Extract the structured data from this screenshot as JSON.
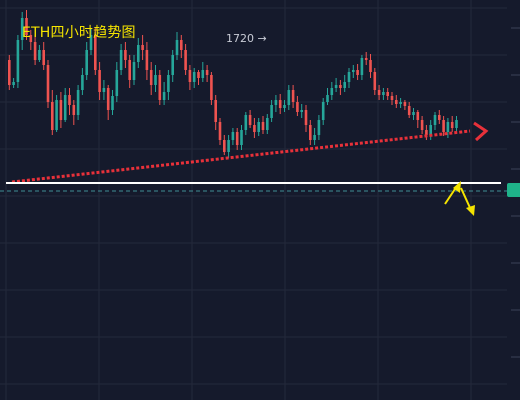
{
  "title": "ETH四小时趋势图",
  "peak_label": "1720 →",
  "colors": {
    "background": "#151a2c",
    "grid": "#23293b",
    "candle_up": "#26a69a",
    "candle_down": "#ef5350",
    "trendline": "#e8313a",
    "support_line": "#ffffff",
    "arrows": "#f5e400",
    "price_tag": "#1fb38a"
  },
  "chart_data": {
    "type": "candlestick",
    "annotations": [
      {
        "kind": "text",
        "text": "1720 →"
      },
      {
        "kind": "trendline",
        "style": "dotted",
        "direction": "rising",
        "color": "#e8313a"
      },
      {
        "kind": "horizontal-support",
        "color": "#ffffff"
      },
      {
        "kind": "arrow",
        "direction": "up",
        "color": "#f5e400"
      },
      {
        "kind": "arrow",
        "direction": "down",
        "color": "#f5e400"
      }
    ],
    "candles": [
      [
        140,
        115,
        145,
        110
      ],
      [
        115,
        118,
        122,
        112
      ],
      [
        118,
        160,
        165,
        112
      ],
      [
        160,
        182,
        188,
        150
      ],
      [
        182,
        165,
        190,
        160
      ],
      [
        165,
        158,
        170,
        150
      ],
      [
        158,
        140,
        165,
        135
      ],
      [
        140,
        150,
        155,
        138
      ],
      [
        150,
        135,
        158,
        130
      ],
      [
        135,
        98,
        140,
        92
      ],
      [
        98,
        70,
        110,
        65
      ],
      [
        70,
        100,
        105,
        68
      ],
      [
        100,
        80,
        108,
        72
      ],
      [
        80,
        105,
        112,
        78
      ],
      [
        105,
        95,
        112,
        85
      ],
      [
        95,
        85,
        100,
        75
      ],
      [
        85,
        110,
        115,
        80
      ],
      [
        110,
        125,
        132,
        105
      ],
      [
        125,
        150,
        158,
        120
      ],
      [
        150,
        165,
        172,
        145
      ],
      [
        165,
        130,
        172,
        125
      ],
      [
        130,
        108,
        138,
        100
      ],
      [
        108,
        112,
        120,
        100
      ],
      [
        112,
        90,
        115,
        80
      ],
      [
        90,
        104,
        110,
        85
      ],
      [
        104,
        130,
        138,
        98
      ],
      [
        130,
        150,
        156,
        125
      ],
      [
        150,
        140,
        158,
        132
      ],
      [
        140,
        120,
        145,
        112
      ],
      [
        120,
        138,
        145,
        115
      ],
      [
        138,
        155,
        162,
        132
      ],
      [
        155,
        150,
        165,
        140
      ],
      [
        150,
        130,
        158,
        120
      ],
      [
        130,
        115,
        138,
        105
      ],
      [
        115,
        125,
        135,
        108
      ],
      [
        125,
        100,
        130,
        95
      ],
      [
        100,
        108,
        118,
        95
      ],
      [
        108,
        125,
        130,
        100
      ],
      [
        125,
        145,
        150,
        118
      ],
      [
        145,
        160,
        168,
        140
      ],
      [
        160,
        150,
        165,
        142
      ],
      [
        150,
        130,
        156,
        125
      ],
      [
        130,
        118,
        135,
        110
      ],
      [
        118,
        128,
        132,
        112
      ],
      [
        128,
        122,
        130,
        115
      ],
      [
        122,
        130,
        138,
        118
      ],
      [
        130,
        125,
        135,
        118
      ],
      [
        125,
        100,
        128,
        95
      ],
      [
        100,
        78,
        105,
        70
      ],
      [
        78,
        60,
        82,
        55
      ],
      [
        60,
        48,
        65,
        45
      ],
      [
        48,
        60,
        65,
        42
      ],
      [
        60,
        68,
        72,
        55
      ],
      [
        68,
        55,
        72,
        50
      ],
      [
        55,
        70,
        75,
        50
      ],
      [
        70,
        85,
        88,
        65
      ],
      [
        85,
        75,
        90,
        72
      ],
      [
        75,
        68,
        82,
        62
      ],
      [
        68,
        78,
        82,
        64
      ],
      [
        78,
        70,
        84,
        66
      ],
      [
        70,
        82,
        86,
        66
      ],
      [
        82,
        95,
        100,
        78
      ],
      [
        95,
        100,
        105,
        88
      ],
      [
        100,
        92,
        106,
        86
      ],
      [
        92,
        95,
        100,
        88
      ],
      [
        95,
        110,
        115,
        90
      ],
      [
        110,
        98,
        115,
        92
      ],
      [
        98,
        88,
        104,
        84
      ],
      [
        88,
        90,
        96,
        82
      ],
      [
        90,
        75,
        95,
        68
      ],
      [
        75,
        60,
        80,
        55
      ],
      [
        60,
        65,
        72,
        55
      ],
      [
        65,
        80,
        85,
        60
      ],
      [
        80,
        98,
        102,
        75
      ],
      [
        98,
        105,
        112,
        95
      ],
      [
        105,
        112,
        118,
        100
      ],
      [
        112,
        115,
        122,
        108
      ],
      [
        115,
        112,
        120,
        105
      ],
      [
        112,
        118,
        125,
        108
      ],
      [
        118,
        128,
        132,
        112
      ],
      [
        128,
        130,
        135,
        122
      ],
      [
        130,
        125,
        136,
        120
      ],
      [
        125,
        142,
        145,
        120
      ],
      [
        142,
        140,
        148,
        135
      ],
      [
        140,
        128,
        146,
        122
      ],
      [
        128,
        110,
        132,
        105
      ],
      [
        110,
        105,
        115,
        100
      ],
      [
        105,
        108,
        112,
        100
      ],
      [
        108,
        104,
        112,
        100
      ],
      [
        104,
        100,
        108,
        95
      ],
      [
        100,
        96,
        105,
        92
      ],
      [
        96,
        98,
        102,
        92
      ],
      [
        98,
        94,
        100,
        90
      ],
      [
        94,
        85,
        98,
        82
      ],
      [
        85,
        88,
        92,
        80
      ],
      [
        88,
        80,
        90,
        72
      ],
      [
        80,
        70,
        84,
        66
      ],
      [
        70,
        65,
        75,
        60
      ],
      [
        65,
        75,
        80,
        60
      ],
      [
        75,
        85,
        88,
        70
      ],
      [
        85,
        80,
        90,
        76
      ],
      [
        80,
        68,
        84,
        64
      ],
      [
        68,
        78,
        82,
        62
      ],
      [
        78,
        72,
        84,
        68
      ],
      [
        72,
        80,
        84,
        68
      ]
    ]
  }
}
